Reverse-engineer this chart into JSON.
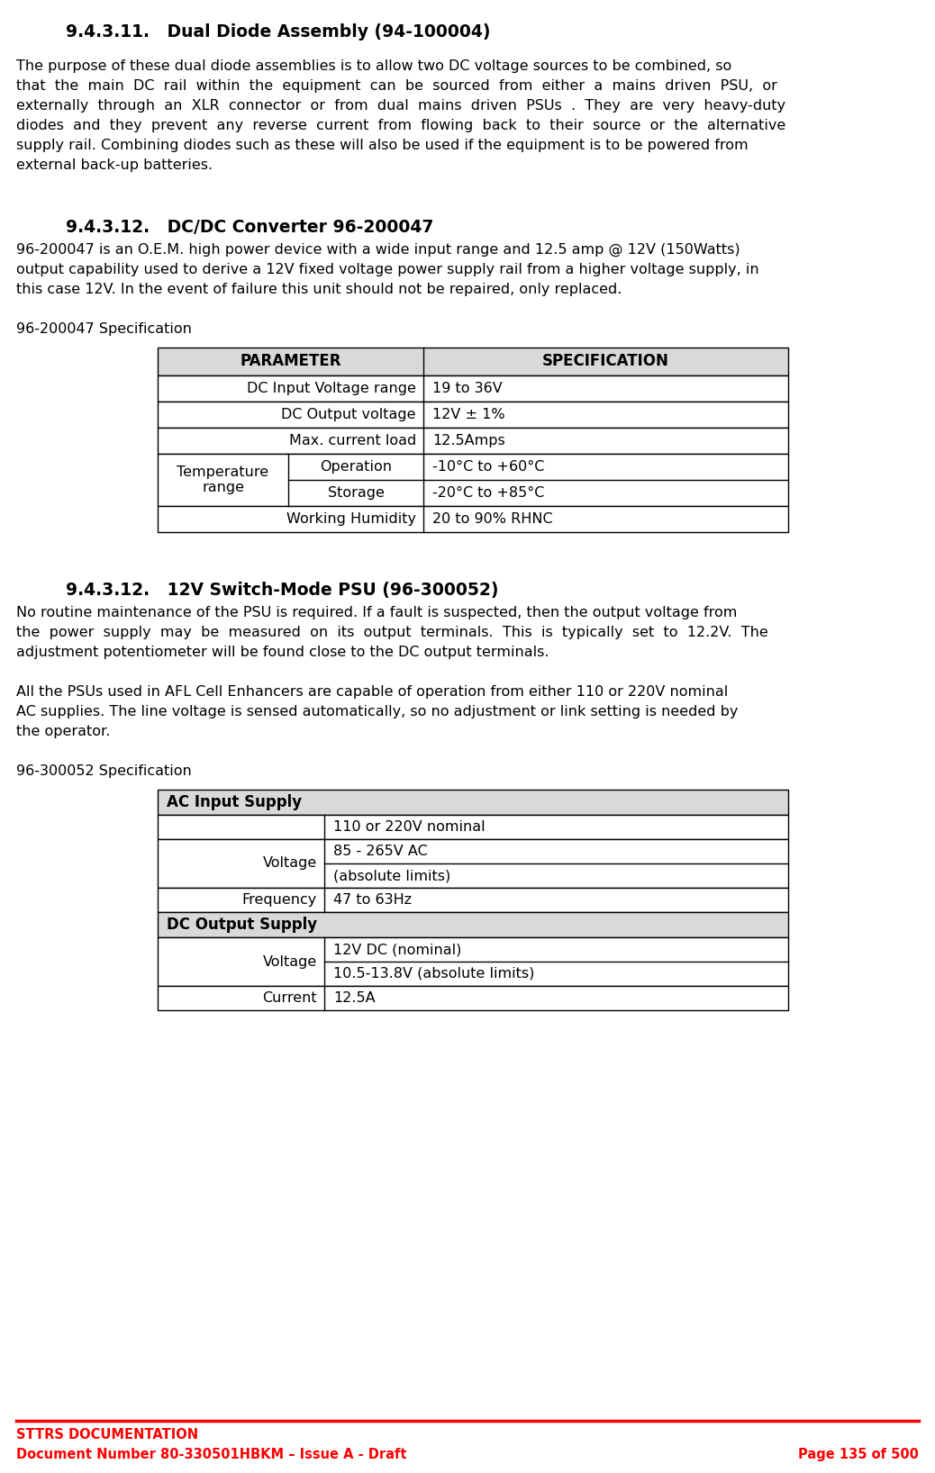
{
  "bg_color": "#ffffff",
  "text_color": "#000000",
  "red_color": "#ff0000",
  "header_bg": "#d9d9d9",
  "table_border": "#000000",
  "footer_line_color": "#ff0000",
  "footer_left1": "STTRS DOCUMENTATION",
  "footer_left2": "Document Number 80-330501HBKM – Issue A - Draft",
  "footer_right2": "Page 135 of 500",
  "section1_heading": "9.4.3.11.   Dual Diode Assembly (94-100004)",
  "body1_lines": [
    "The purpose of these dual diode assemblies is to allow two DC voltage sources to be combined, so",
    "that  the  main  DC  rail  within  the  equipment  can  be  sourced  from  either  a  mains  driven  PSU,  or",
    "externally  through  an  XLR  connector  or  from  dual  mains  driven  PSUs  .  They  are  very  heavy-duty",
    "diodes  and  they  prevent  any  reverse  current  from  flowing  back  to  their  source  or  the  alternative",
    "supply rail. Combining diodes such as these will also be used if the equipment is to be powered from",
    "external back-up batteries."
  ],
  "section2_heading": "9.4.3.12.   DC/DC Converter 96-200047",
  "body2_lines": [
    "96-200047 is an O.E.M. high power device with a wide input range and 12.5 amp @ 12V (150Watts)",
    "output capability used to derive a 12V fixed voltage power supply rail from a higher voltage supply, in",
    "this case 12V. In the event of failure this unit should not be repaired, only replaced."
  ],
  "table1_title": "96-200047 Specification",
  "section3_heading": "9.4.3.12.   12V Switch-Mode PSU (96-300052)",
  "body3a_lines": [
    "No routine maintenance of the PSU is required. If a fault is suspected, then the output voltage from",
    "the  power  supply  may  be  measured  on  its  output  terminals.  This  is  typically  set  to  12.2V.  The",
    "adjustment potentiometer will be found close to the DC output terminals."
  ],
  "body3b_lines": [
    "All the PSUs used in AFL Cell Enhancers are capable of operation from either 110 or 220V nominal",
    "AC supplies. The line voltage is sensed automatically, so no adjustment or link setting is needed by",
    "the operator."
  ],
  "table2_title": "96-300052 Specification"
}
